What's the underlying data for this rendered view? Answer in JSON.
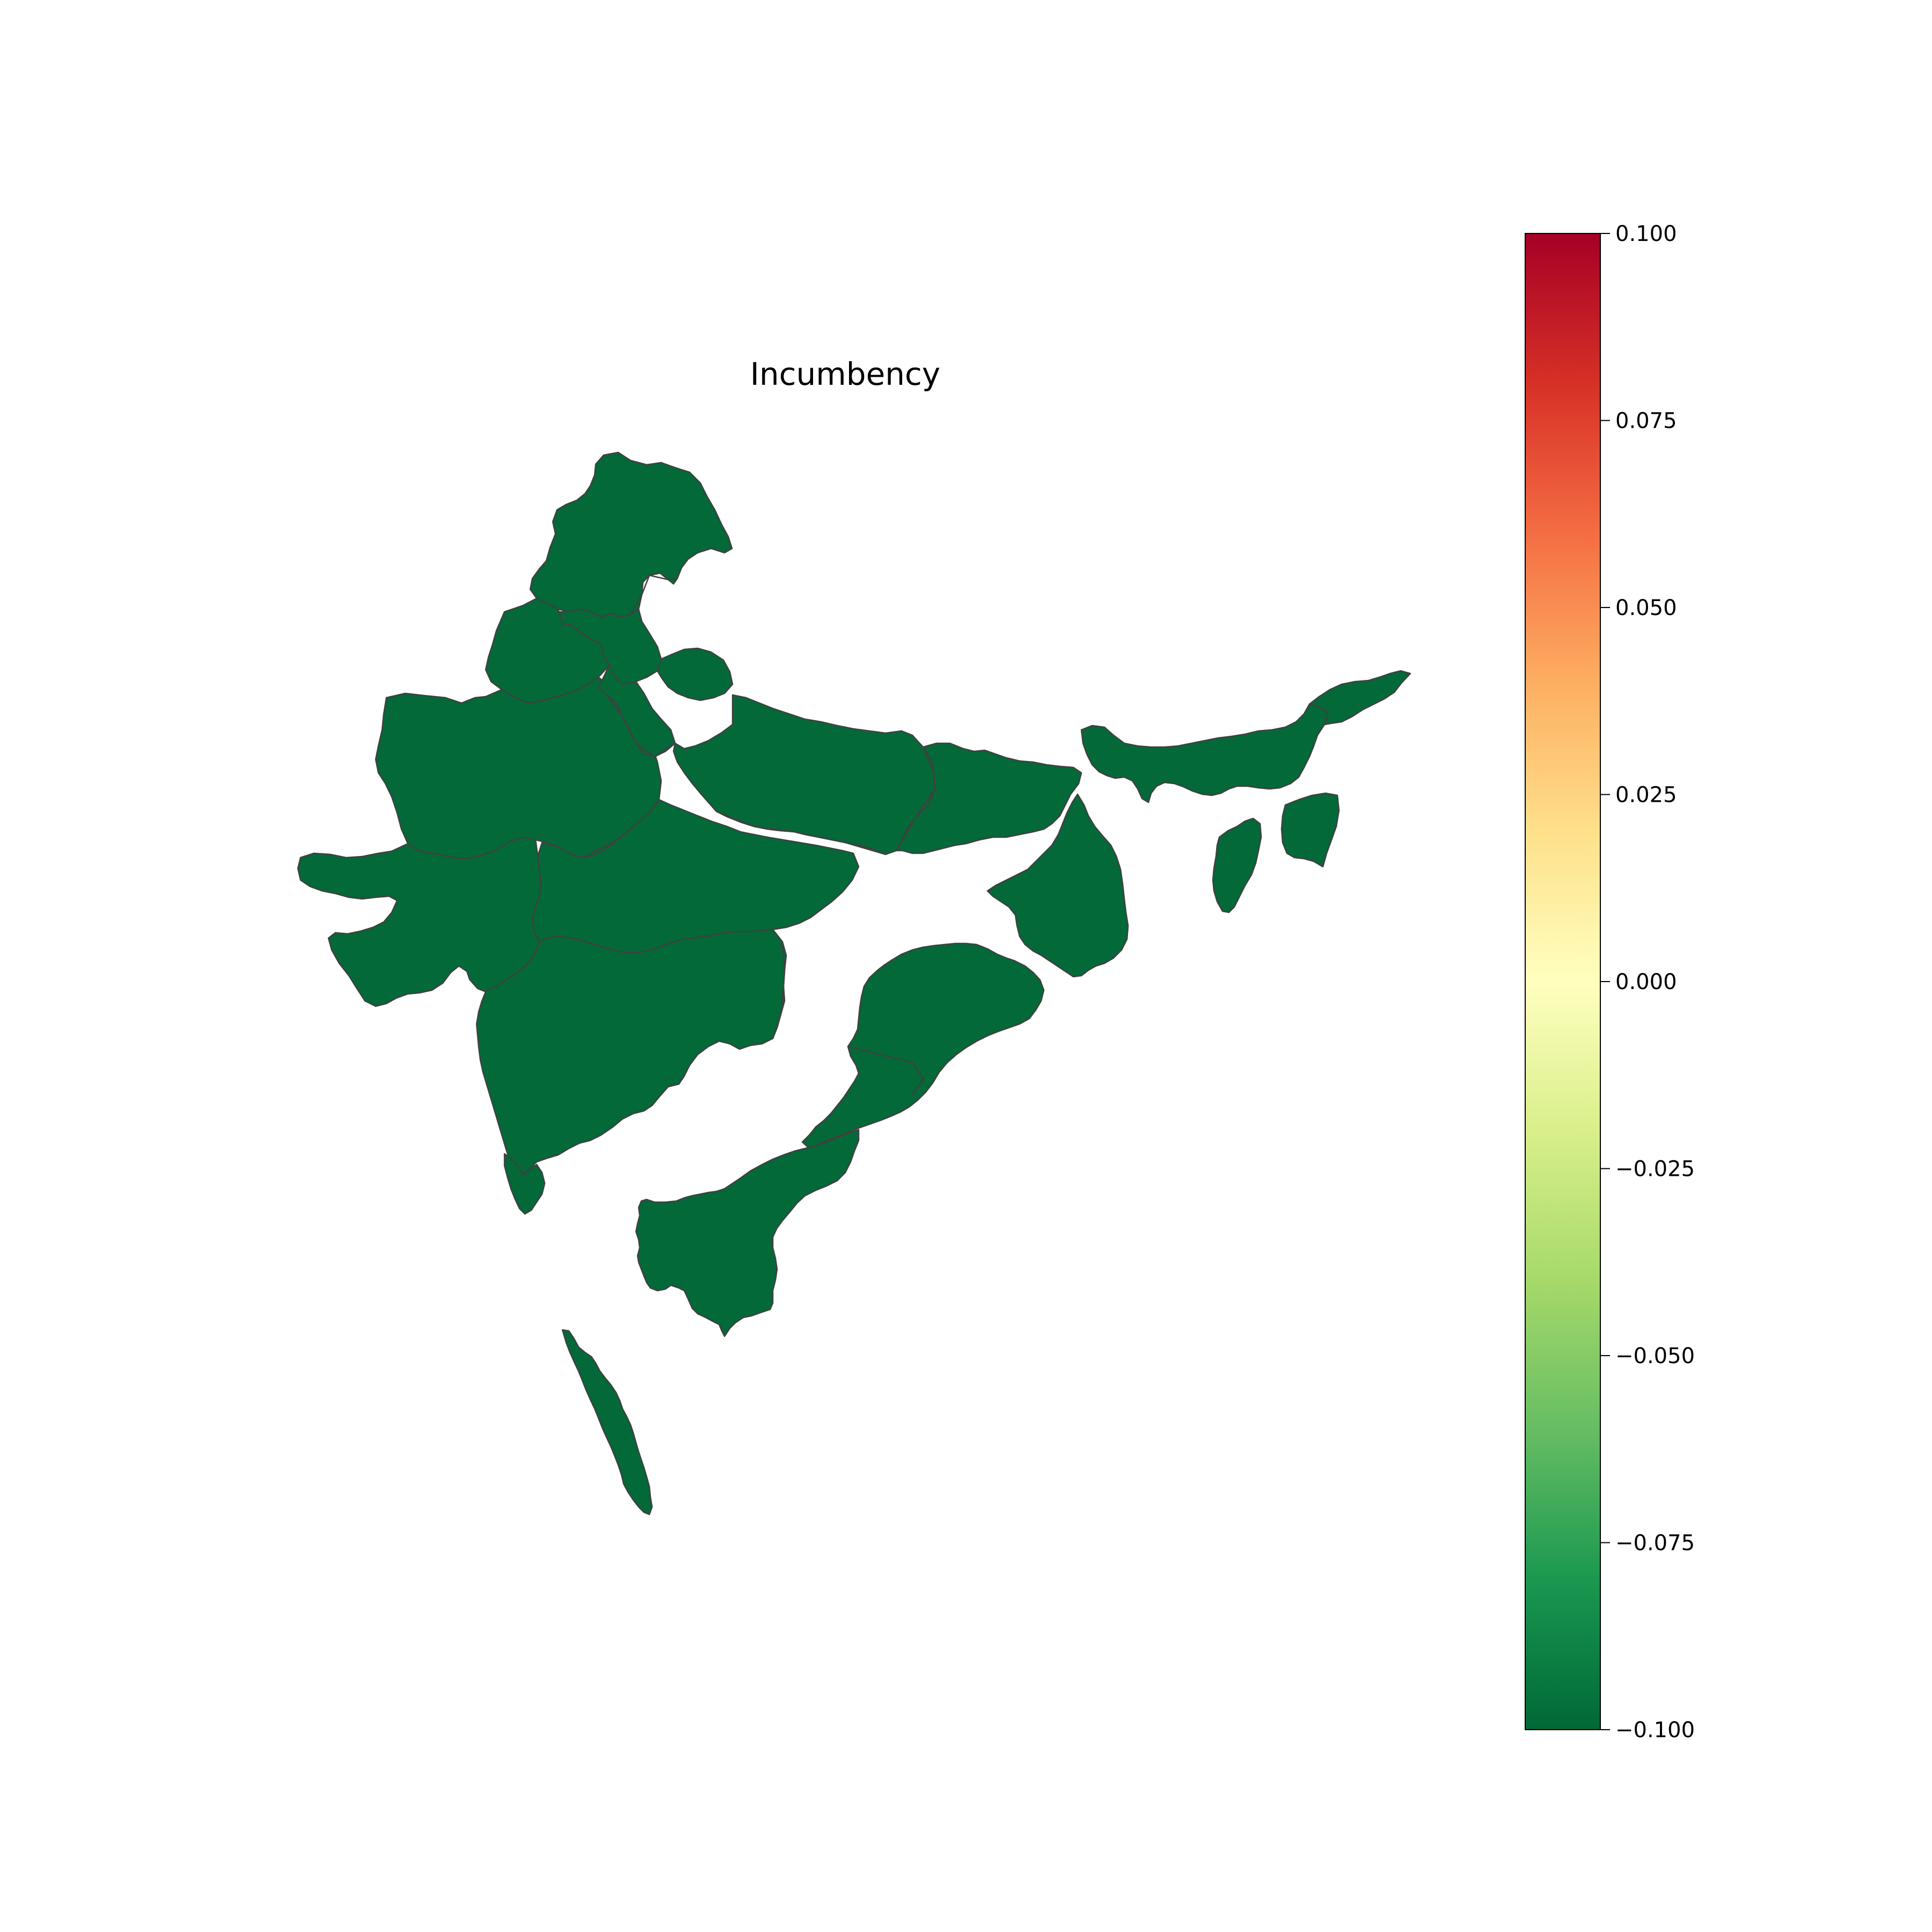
{
  "title": "Incumbency",
  "map": {
    "fill_color": "#036938",
    "border_color": "#404040",
    "region_value": -0.1
  },
  "colorbar": {
    "colormap": "RdYlGn_r",
    "range": [
      -0.1,
      0.1
    ],
    "gradient_stops": [
      "#006837",
      "#1a9850",
      "#66bd63",
      "#a6d96a",
      "#d9ef8b",
      "#ffffbf",
      "#fee08b",
      "#fdae61",
      "#f46d43",
      "#d73027",
      "#a50026"
    ],
    "ticks": [
      {
        "value": 0.1,
        "label": "0.100"
      },
      {
        "value": 0.075,
        "label": "0.075"
      },
      {
        "value": 0.05,
        "label": "0.050"
      },
      {
        "value": 0.025,
        "label": "0.025"
      },
      {
        "value": 0.0,
        "label": "0.000"
      },
      {
        "value": -0.025,
        "label": "−0.025"
      },
      {
        "value": -0.05,
        "label": "−0.050"
      },
      {
        "value": -0.075,
        "label": "−0.075"
      },
      {
        "value": -0.1,
        "label": "−0.100"
      }
    ]
  }
}
